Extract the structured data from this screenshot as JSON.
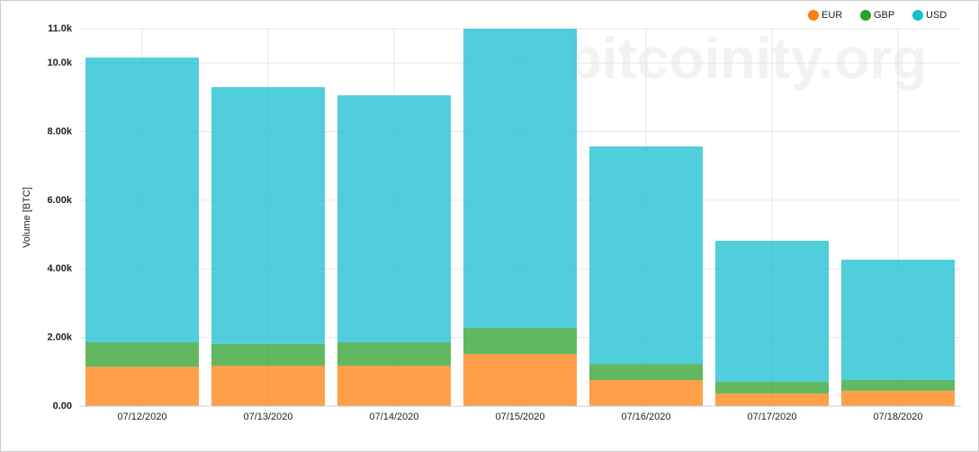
{
  "chart_data": {
    "type": "stacked_bar",
    "watermark": "bitcoinity.org",
    "y_label": "Volume [BTC]",
    "categories": [
      "07/12/2020",
      "07/13/2020",
      "07/14/2020",
      "07/15/2020",
      "07/16/2020",
      "07/17/2020",
      "07/18/2020"
    ],
    "series": [
      {
        "name": "EUR",
        "color": "#ff7f0e",
        "values": [
          1150,
          1180,
          1180,
          1520,
          760,
          370,
          450
        ]
      },
      {
        "name": "GBP",
        "color": "#2ca02c",
        "values": [
          710,
          630,
          680,
          760,
          470,
          340,
          310
        ]
      },
      {
        "name": "USD",
        "color": "#17becf",
        "values": [
          8300,
          7490,
          7200,
          8720,
          6340,
          4110,
          3510
        ]
      }
    ],
    "ylim": [
      0,
      11000
    ],
    "yticks": [
      {
        "value": 0,
        "label": "0.00"
      },
      {
        "value": 2000,
        "label": "2.00k"
      },
      {
        "value": 4000,
        "label": "4.00k"
      },
      {
        "value": 6000,
        "label": "6.00k"
      },
      {
        "value": 8000,
        "label": "8.00k"
      },
      {
        "value": 10000,
        "label": "10.0k"
      },
      {
        "value": 11000,
        "label": "11.0k"
      }
    ],
    "grid": true,
    "legend": "top-right"
  }
}
